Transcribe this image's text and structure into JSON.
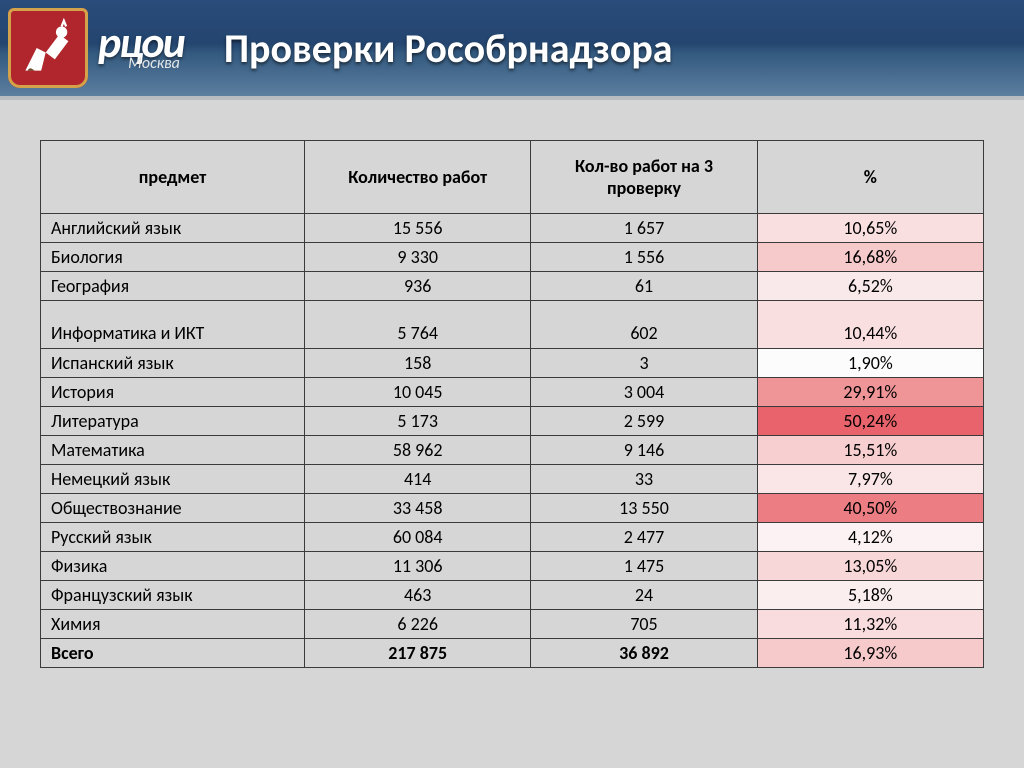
{
  "header": {
    "logo_text": "рцои",
    "logo_sub": "Москва",
    "title": "Проверки Рособрнадзора"
  },
  "table": {
    "columns": [
      "предмет",
      "Количество работ",
      "Кол-во работ на 3 проверку",
      "%"
    ],
    "header_bg": "#d6d6d6",
    "border_color": "#3b3b3b",
    "col_widths_pct": [
      28,
      24,
      24,
      24
    ],
    "header_fontsize": 18,
    "body_fontsize": 18,
    "rows": [
      {
        "subject": "Английский язык",
        "works": "15 556",
        "recheck": "1 657",
        "pct": "10,65%",
        "pct_bg": "#f9dfe0",
        "tall": false
      },
      {
        "subject": "Биология",
        "works": "9 330",
        "recheck": "1 556",
        "pct": "16,68%",
        "pct_bg": "#f6c9cb",
        "tall": false
      },
      {
        "subject": "География",
        "works": "936",
        "recheck": "61",
        "pct": "6,52%",
        "pct_bg": "#fae9ea",
        "tall": false
      },
      {
        "subject": "Информатика и ИКТ",
        "works": "5 764",
        "recheck": "602",
        "pct": "10,44%",
        "pct_bg": "#f9dfe0",
        "tall": true
      },
      {
        "subject": "Испанский язык",
        "works": "158",
        "recheck": "3",
        "pct": "1,90%",
        "pct_bg": "#fdfcfd",
        "tall": false
      },
      {
        "subject": "История",
        "works": "10 045",
        "recheck": "3 004",
        "pct": "29,91%",
        "pct_bg": "#ef9597",
        "tall": false
      },
      {
        "subject": "Литература",
        "works": "5 173",
        "recheck": "2 599",
        "pct": "50,24%",
        "pct_bg": "#e8636b",
        "tall": false
      },
      {
        "subject": "Математика",
        "works": "58 962",
        "recheck": "9 146",
        "pct": "15,51%",
        "pct_bg": "#f7cfd0",
        "tall": false
      },
      {
        "subject": "Немецкий язык",
        "works": "414",
        "recheck": "33",
        "pct": "7,97%",
        "pct_bg": "#fae6e7",
        "tall": false
      },
      {
        "subject": "Обществознание",
        "works": "33 458",
        "recheck": "13 550",
        "pct": "40,50%",
        "pct_bg": "#ec7d82",
        "tall": false
      },
      {
        "subject": "Русский язык",
        "works": "60 084",
        "recheck": "2 477",
        "pct": "4,12%",
        "pct_bg": "#fcf2f3",
        "tall": false
      },
      {
        "subject": "Физика",
        "works": "11 306",
        "recheck": "1 475",
        "pct": "13,05%",
        "pct_bg": "#f8d7d8",
        "tall": false
      },
      {
        "subject": "Французский язык",
        "works": "463",
        "recheck": "24",
        "pct": "5,18%",
        "pct_bg": "#fbeeef",
        "tall": false
      },
      {
        "subject": "Химия",
        "works": "6 226",
        "recheck": "705",
        "pct": "11,32%",
        "pct_bg": "#f9dcdd",
        "tall": false
      }
    ],
    "total": {
      "subject": "Всего",
      "works": "217 875",
      "recheck": "36 892",
      "pct": "16,93%",
      "pct_bg": "#f6c9cb"
    }
  },
  "colors": {
    "page_bg": "#d6d6d6",
    "header_grad_top": "#2a4c7a",
    "header_grad_bottom": "#5c7fa0",
    "crest_bg": "#b1262d",
    "crest_border": "#d3a24a"
  }
}
